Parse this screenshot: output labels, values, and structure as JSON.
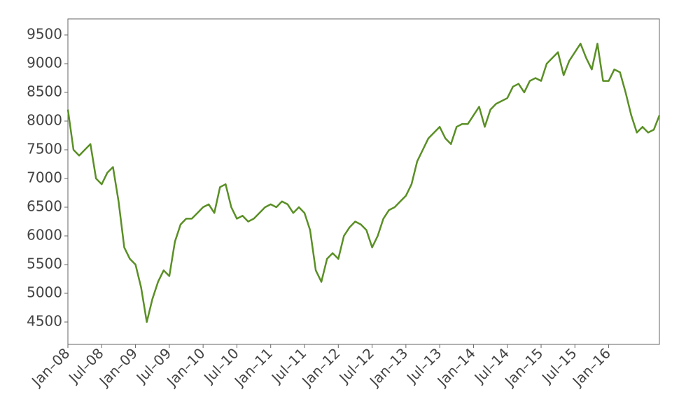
{
  "chart_data": {
    "type": "line",
    "x": [
      "2008-01",
      "2008-02",
      "2008-03",
      "2008-04",
      "2008-05",
      "2008-06",
      "2008-07",
      "2008-08",
      "2008-09",
      "2008-10",
      "2008-11",
      "2008-12",
      "2009-01",
      "2009-02",
      "2009-03",
      "2009-04",
      "2009-05",
      "2009-06",
      "2009-07",
      "2009-08",
      "2009-09",
      "2009-10",
      "2009-11",
      "2009-12",
      "2010-01",
      "2010-02",
      "2010-03",
      "2010-04",
      "2010-05",
      "2010-06",
      "2010-07",
      "2010-08",
      "2010-09",
      "2010-10",
      "2010-11",
      "2010-12",
      "2011-01",
      "2011-02",
      "2011-03",
      "2011-04",
      "2011-05",
      "2011-06",
      "2011-07",
      "2011-08",
      "2011-09",
      "2011-10",
      "2011-11",
      "2011-12",
      "2012-01",
      "2012-02",
      "2012-03",
      "2012-04",
      "2012-05",
      "2012-06",
      "2012-07",
      "2012-08",
      "2012-09",
      "2012-10",
      "2012-11",
      "2012-12",
      "2013-01",
      "2013-02",
      "2013-03",
      "2013-04",
      "2013-05",
      "2013-06",
      "2013-07",
      "2013-08",
      "2013-09",
      "2013-10",
      "2013-11",
      "2013-12",
      "2014-01",
      "2014-02",
      "2014-03",
      "2014-04",
      "2014-05",
      "2014-06",
      "2014-07",
      "2014-08",
      "2014-09",
      "2014-10",
      "2014-11",
      "2014-12",
      "2015-01",
      "2015-02",
      "2015-03",
      "2015-04",
      "2015-05",
      "2015-06",
      "2015-07",
      "2015-08",
      "2015-09",
      "2015-10",
      "2015-11",
      "2015-12",
      "2016-01",
      "2016-02",
      "2016-03",
      "2016-04",
      "2016-05",
      "2016-06",
      "2016-07",
      "2016-08",
      "2016-09",
      "2016-10"
    ],
    "values": [
      8200,
      7500,
      7400,
      7500,
      7600,
      7000,
      6900,
      7100,
      7200,
      6600,
      5800,
      5600,
      5500,
      5100,
      4500,
      4900,
      5200,
      5400,
      5300,
      5900,
      6200,
      6300,
      6300,
      6400,
      6500,
      6550,
      6400,
      6850,
      6900,
      6500,
      6300,
      6350,
      6250,
      6300,
      6400,
      6500,
      6550,
      6500,
      6600,
      6550,
      6400,
      6500,
      6400,
      6100,
      5400,
      5200,
      5600,
      5700,
      5600,
      6000,
      6150,
      6250,
      6200,
      6100,
      5800,
      6000,
      6300,
      6450,
      6500,
      6600,
      6700,
      6900,
      7300,
      7500,
      7700,
      7800,
      7900,
      7700,
      7600,
      7900,
      7950,
      7950,
      8100,
      8250,
      7900,
      8200,
      8300,
      8350,
      8400,
      8600,
      8650,
      8500,
      8700,
      8750,
      8700,
      9000,
      9100,
      9200,
      8800,
      9050,
      9200,
      9350,
      9100,
      8900,
      9350,
      8700,
      8700,
      8900,
      8850,
      8500,
      8100,
      7800,
      7900,
      7800,
      7850,
      8100
    ],
    "color": "#5a8f25",
    "xlim": [
      "2008-01",
      "2016-10"
    ],
    "xticks": [
      {
        "value": "2008-01",
        "label": "Jan–08"
      },
      {
        "value": "2008-07",
        "label": "Jul–08"
      },
      {
        "value": "2009-01",
        "label": "Jan–09"
      },
      {
        "value": "2009-07",
        "label": "Jul–09"
      },
      {
        "value": "2010-01",
        "label": "Jan–10"
      },
      {
        "value": "2010-07",
        "label": "Jul–10"
      },
      {
        "value": "2011-01",
        "label": "Jan–11"
      },
      {
        "value": "2011-07",
        "label": "Jul–11"
      },
      {
        "value": "2012-01",
        "label": "Jan–12"
      },
      {
        "value": "2012-07",
        "label": "Jul–12"
      },
      {
        "value": "2013-01",
        "label": "Jan–13"
      },
      {
        "value": "2013-07",
        "label": "Jul–13"
      },
      {
        "value": "2014-01",
        "label": "Jan–14"
      },
      {
        "value": "2014-07",
        "label": "Jul–14"
      },
      {
        "value": "2015-01",
        "label": "Jan–15"
      },
      {
        "value": "2015-07",
        "label": "Jul–15"
      },
      {
        "value": "2016-01",
        "label": "Jan–16"
      }
    ],
    "ylim": [
      4110,
      9780
    ],
    "yticks": [
      4500,
      5000,
      5500,
      6000,
      6500,
      7000,
      7500,
      8000,
      8500,
      9000,
      9500
    ]
  }
}
